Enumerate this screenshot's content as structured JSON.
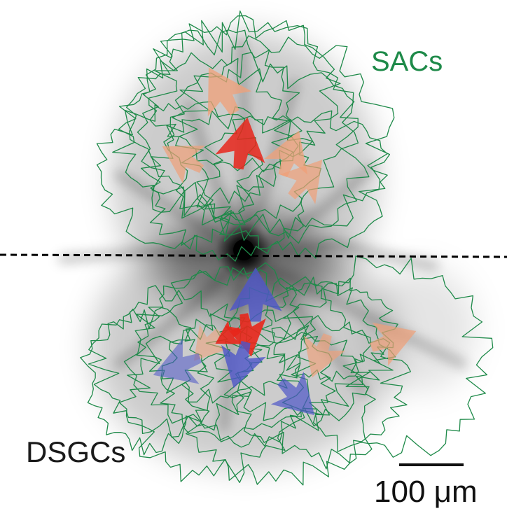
{
  "labels": {
    "sacs": "SACs",
    "dsgcs": "DSGCs",
    "scale": "100 μm"
  },
  "colors": {
    "sac_outline": "#1e8a49",
    "arrow_red": "#e8261b",
    "arrow_salmon": "#f0a078",
    "arrow_blue": "#4d55c8",
    "axis_line": "#000000",
    "density": "#000000"
  },
  "elements": {
    "divider": "dashed horizontal midline",
    "density_map": "grey dendritic density cloud centered at soma",
    "scale_bar": "100 μm scale bar"
  }
}
